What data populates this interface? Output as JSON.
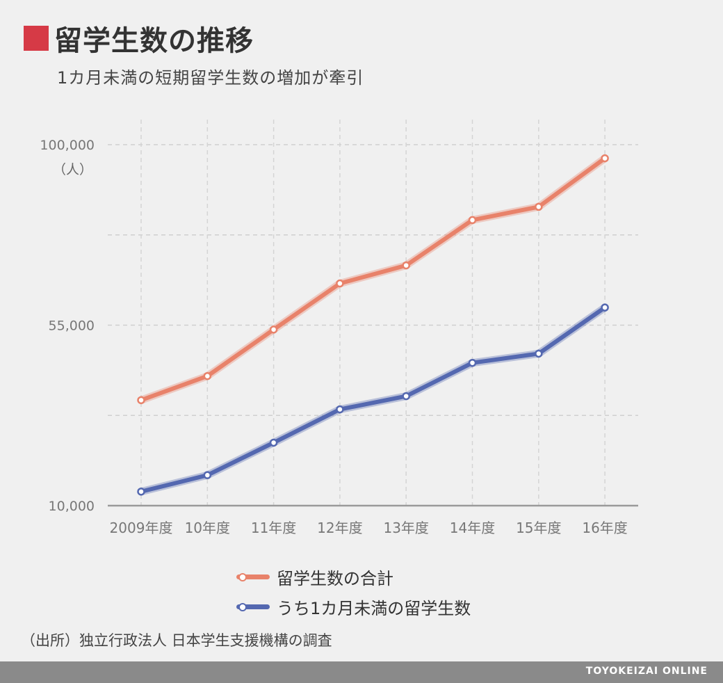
{
  "title": "留学生数の推移",
  "subtitle": "1カ月未満の短期留学生数の増加が牽引",
  "unit_label": "（人）",
  "source": "（出所）独立行政法人 日本学生支援機構の調査",
  "brand": "TOYOKEIZAI ONLINE",
  "colors": {
    "title_mark": "#d63a46",
    "total": "#e8826a",
    "short": "#5468b0",
    "footer": "#8a8a8a"
  },
  "chart_data": {
    "type": "line",
    "title": "留学生数の推移",
    "subtitle": "1カ月未満の短期留学生数の増加が牽引",
    "categories": [
      "2009年度",
      "10年度",
      "11年度",
      "12年度",
      "13年度",
      "14年度",
      "15年度",
      "16年度"
    ],
    "series": [
      {
        "name": "留学生数の合計",
        "color": "#e8826a",
        "values": [
          36300,
          42300,
          53900,
          65400,
          69900,
          81200,
          84500,
          96600
        ]
      },
      {
        "name": "うち1カ月未満の留学生数",
        "color": "#5468b0",
        "values": [
          13500,
          17600,
          25700,
          34000,
          37300,
          45600,
          47900,
          59400
        ]
      }
    ],
    "ylabel": "（人）",
    "ylim": [
      10000,
      100000
    ],
    "yticks": [
      {
        "value": 100000,
        "label": "100,000"
      },
      {
        "value": 55000,
        "label": "55,000"
      },
      {
        "value": 10000,
        "label": "10,000"
      }
    ],
    "grid": true,
    "legend": "bottom"
  }
}
